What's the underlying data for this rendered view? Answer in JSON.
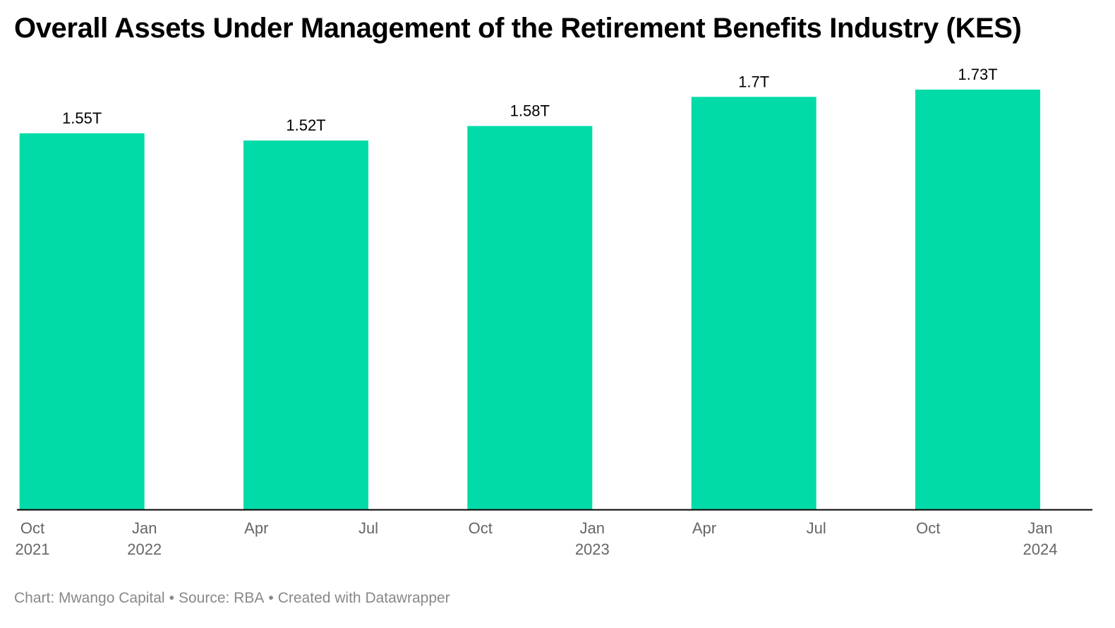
{
  "title": "Overall Assets Under Management of the Retirement Benefits Industry (KES)",
  "footer": {
    "chart_credit": "Chart: Mwango Capital",
    "source": "Source: RBA",
    "created_with": "Created with Datawrapper",
    "separator": "•"
  },
  "colors": {
    "bar": "#00dba8",
    "axis": "#000000",
    "tick_text": "#666666",
    "label_text": "#000000",
    "footer_text": "#888888"
  },
  "chart_data": {
    "type": "bar",
    "title": "Overall Assets Under Management of the Retirement Benefits Industry (KES)",
    "x_axis": "time",
    "xlim": [
      "2021-10-01",
      "2024-03-01"
    ],
    "ylim": [
      0,
      1.73
    ],
    "grid": false,
    "legend": "none",
    "series": [
      {
        "values": [
          {
            "x": "2021-12",
            "value": 1.55,
            "label": "1.55T"
          },
          {
            "x": "2022-06",
            "value": 1.52,
            "label": "1.52T"
          },
          {
            "x": "2022-12",
            "value": 1.58,
            "label": "1.58T"
          },
          {
            "x": "2023-06",
            "value": 1.7,
            "label": "1.7T"
          },
          {
            "x": "2023-12",
            "value": 1.73,
            "label": "1.73T"
          }
        ]
      }
    ],
    "x_ticks": [
      {
        "date": "2021-10-01",
        "label": "Oct",
        "year": "2021"
      },
      {
        "date": "2022-01-01",
        "label": "Jan",
        "year": "2022"
      },
      {
        "date": "2022-04-01",
        "label": "Apr",
        "year": ""
      },
      {
        "date": "2022-07-01",
        "label": "Jul",
        "year": ""
      },
      {
        "date": "2022-10-01",
        "label": "Oct",
        "year": ""
      },
      {
        "date": "2023-01-01",
        "label": "Jan",
        "year": "2023"
      },
      {
        "date": "2023-04-01",
        "label": "Apr",
        "year": ""
      },
      {
        "date": "2023-07-01",
        "label": "Jul",
        "year": ""
      },
      {
        "date": "2023-10-01",
        "label": "Oct",
        "year": ""
      },
      {
        "date": "2024-01-01",
        "label": "Jan",
        "year": "2024"
      }
    ]
  }
}
